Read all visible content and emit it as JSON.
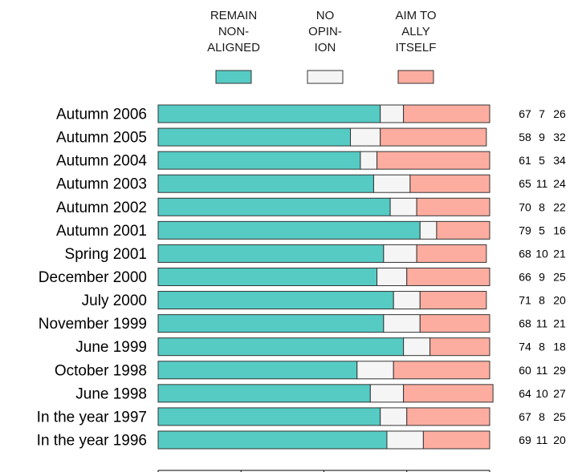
{
  "chart_data": {
    "type": "bar",
    "stacked": true,
    "orientation": "horizontal",
    "categories": [
      "Autumn 2006",
      "Autumn 2005",
      "Autumn 2004",
      "Autumn 2003",
      "Autumn 2002",
      "Autumn 2001",
      "Spring 2001",
      "December 2000",
      "July 2000",
      "November 1999",
      "June 1999",
      "October 1998",
      "June 1998",
      "In the year 1997",
      "In the year 1996"
    ],
    "series": [
      {
        "name": "REMAIN NON-ALIGNED",
        "legend_lines": [
          "REMAIN",
          "NON-",
          "ALIGNED"
        ],
        "color": "#55CBC4",
        "values": [
          67,
          58,
          61,
          65,
          70,
          79,
          68,
          66,
          71,
          68,
          74,
          60,
          64,
          67,
          69
        ]
      },
      {
        "name": "NO OPINION",
        "legend_lines": [
          "NO",
          "OPIN-",
          "ION"
        ],
        "color": "#F5F5F5",
        "values": [
          7,
          9,
          5,
          11,
          8,
          5,
          10,
          9,
          8,
          11,
          8,
          11,
          10,
          8,
          11
        ]
      },
      {
        "name": "AIM TO ALLY ITSELF",
        "legend_lines": [
          "AIM TO",
          "ALLY",
          "ITSELF"
        ],
        "color": "#FCADA0",
        "values": [
          26,
          32,
          34,
          24,
          22,
          16,
          21,
          25,
          20,
          21,
          18,
          29,
          27,
          25,
          20
        ]
      }
    ],
    "xlim": [
      0,
      100
    ],
    "xticks": [
      0,
      25,
      50,
      75,
      100
    ],
    "title": "",
    "xlabel": "",
    "ylabel": "",
    "grid": false,
    "legend_position": "top"
  }
}
